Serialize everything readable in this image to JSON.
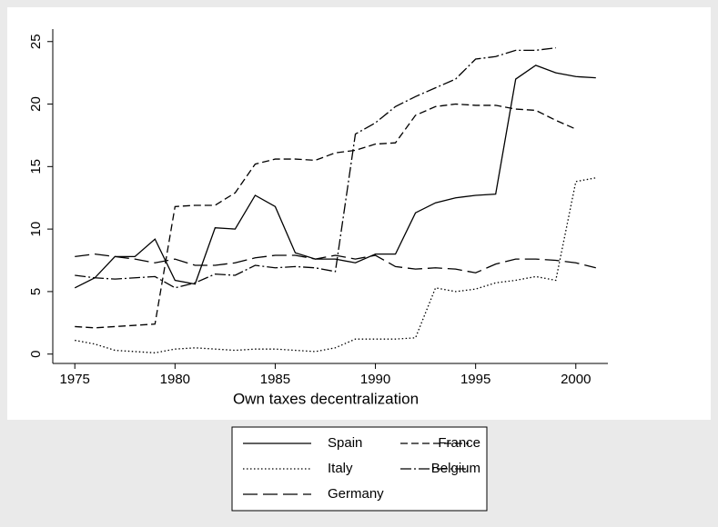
{
  "chart_data": {
    "type": "line",
    "xlabel": "Own taxes decentralization",
    "x": [
      1975,
      1976,
      1977,
      1978,
      1979,
      1980,
      1981,
      1982,
      1983,
      1984,
      1985,
      1986,
      1987,
      1988,
      1989,
      1990,
      1991,
      1992,
      1993,
      1994,
      1995,
      1996,
      1997,
      1998,
      1999,
      2000,
      2001
    ],
    "series": [
      {
        "name": "Spain",
        "color": "#000000",
        "dash": "none",
        "values": [
          5.3,
          6.1,
          7.8,
          7.8,
          9.2,
          5.9,
          5.6,
          10.1,
          10.0,
          12.7,
          11.8,
          8.1,
          7.6,
          7.6,
          7.3,
          8.0,
          8.0,
          11.3,
          12.1,
          12.5,
          12.7,
          12.8,
          22.0,
          23.1,
          22.5,
          22.2,
          22.1
        ]
      },
      {
        "name": "France",
        "color": "#000000",
        "dash": "8 4",
        "values": [
          2.2,
          2.1,
          2.2,
          2.3,
          2.4,
          11.8,
          11.9,
          11.9,
          12.9,
          15.2,
          15.6,
          15.6,
          15.5,
          16.1,
          16.3,
          16.8,
          16.9,
          19.1,
          19.8,
          20.0,
          19.9,
          19.9,
          19.6,
          19.5,
          18.7,
          18.0,
          null
        ]
      },
      {
        "name": "Italy",
        "color": "#000000",
        "dash": "1.5 2.5",
        "values": [
          1.1,
          0.8,
          0.3,
          0.2,
          0.1,
          0.4,
          0.5,
          0.4,
          0.3,
          0.4,
          0.4,
          0.3,
          0.2,
          0.5,
          1.2,
          1.2,
          1.2,
          1.3,
          5.3,
          5.0,
          5.2,
          5.7,
          5.9,
          6.2,
          5.9,
          13.8,
          14.1
        ]
      },
      {
        "name": "Belgium",
        "color": "#000000",
        "dash": "12 3 2 3",
        "values": [
          6.3,
          6.1,
          6.0,
          6.1,
          6.2,
          5.3,
          5.7,
          6.4,
          6.3,
          7.1,
          6.9,
          7.0,
          6.9,
          6.6,
          17.6,
          18.5,
          19.8,
          20.6,
          21.3,
          22.0,
          23.6,
          23.8,
          24.3,
          24.3,
          24.5,
          null,
          null
        ]
      },
      {
        "name": "Germany",
        "color": "#000000",
        "dash": "16 6",
        "values": [
          7.8,
          8.0,
          7.8,
          7.6,
          7.3,
          7.6,
          7.1,
          7.1,
          7.3,
          7.7,
          7.9,
          7.9,
          7.6,
          7.9,
          7.6,
          7.9,
          7.0,
          6.8,
          6.9,
          6.8,
          6.5,
          7.2,
          7.6,
          7.6,
          7.5,
          7.3,
          6.9
        ]
      }
    ],
    "xlim": [
      1973.9,
      2001.6
    ],
    "xticks": [
      1975,
      1980,
      1985,
      1990,
      1995,
      2000
    ],
    "ylim": [
      -0.75,
      26
    ],
    "yticks": [
      0,
      5,
      10,
      15,
      20,
      25
    ]
  }
}
